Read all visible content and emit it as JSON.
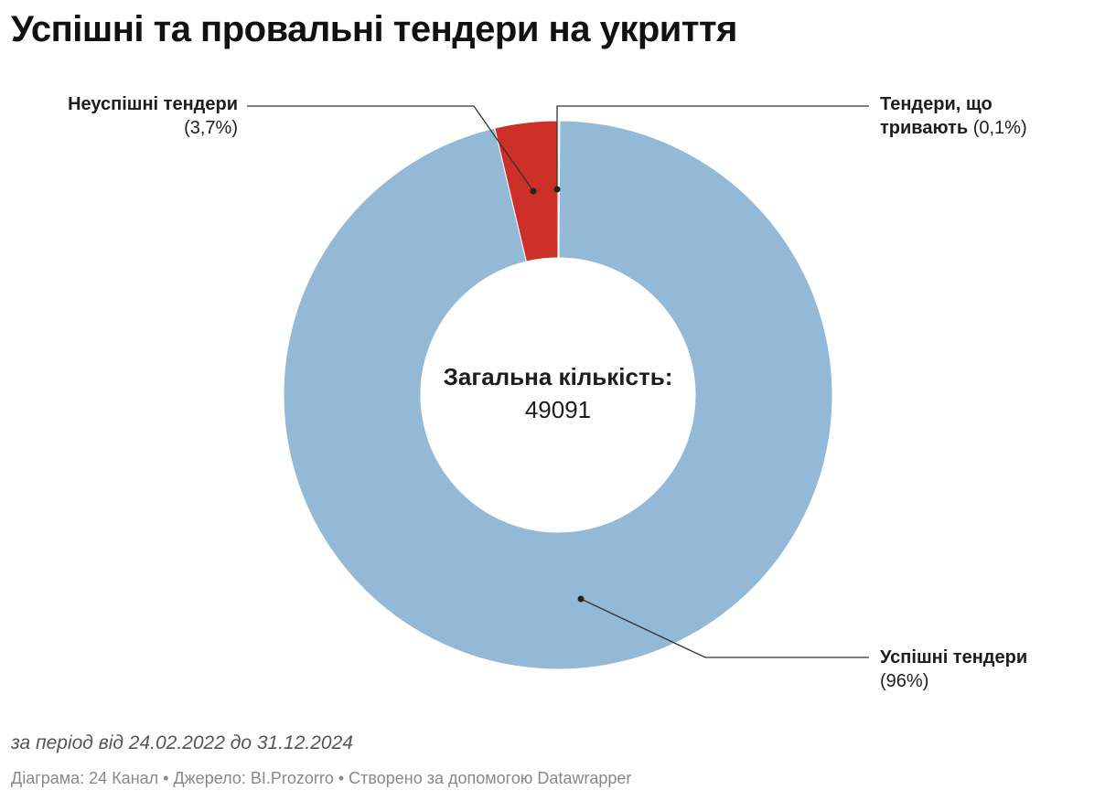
{
  "title": "Успішні та провальні тендери на укриття",
  "chart_data": {
    "type": "pie",
    "variant": "donut",
    "title": "Успішні та провальні тендери на укриття",
    "slices": [
      {
        "name": "Тендери, що тривають",
        "value": 0.1,
        "pct_label": "(0,1%)",
        "color": "#c8cdd2"
      },
      {
        "name": "Успішні тендери",
        "value": 96,
        "pct_label": "(96%)",
        "color": "#94b9d6"
      },
      {
        "name": "Неуспішні тендери",
        "value": 3.7,
        "pct_label": "(3,7%)",
        "color": "#cc3029"
      }
    ],
    "center": {
      "label": "Загальна кількість:",
      "value": "49091"
    }
  },
  "labels": {
    "failed_name": "Неуспішні тендери",
    "failed_pct": "(3,7%)",
    "ongoing_name_line1": "Тендери, що",
    "ongoing_name_line2": "тривають",
    "ongoing_pct": "(0,1%)",
    "success_name": "Успішні тендери",
    "success_pct": "(96%)"
  },
  "period": "за період від 24.02.2022 до 31.12.2024",
  "footer": "Діаграма: 24 Канал • Джерело: BI.Prozorro • Створено за допомогою Datawrapper",
  "colors": {
    "success": "#94b9d6",
    "failed": "#cc3029",
    "ongoing": "#c8cdd2",
    "leader": "#333333"
  }
}
